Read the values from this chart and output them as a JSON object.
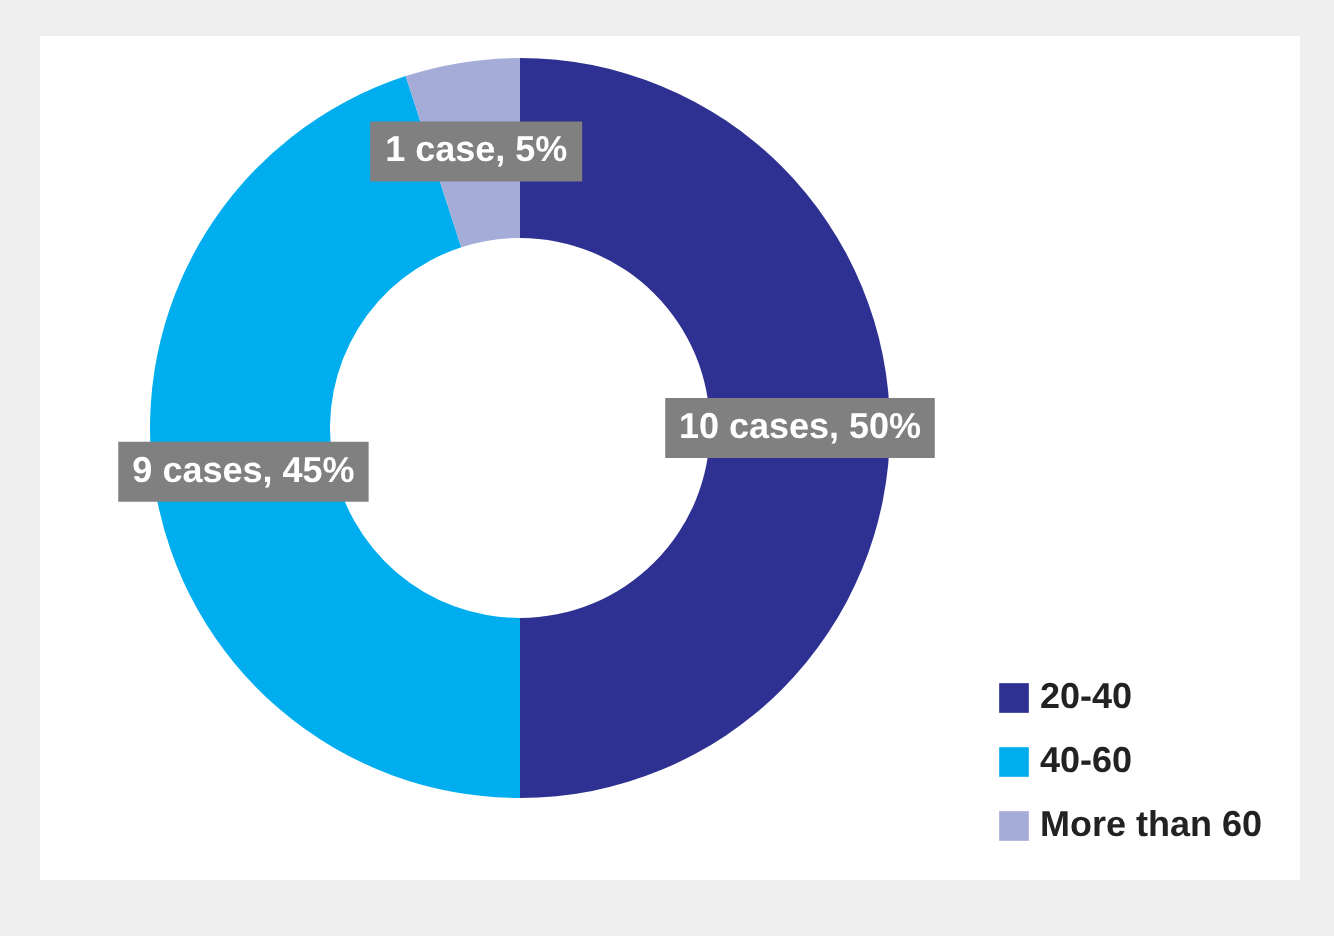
{
  "chart_data": {
    "type": "donut",
    "categories": [
      "20-40",
      "40-60",
      "More than 60"
    ],
    "values": [
      10,
      9,
      1
    ],
    "colors": [
      "#2e3192",
      "#00aeef",
      "#a5acd8"
    ],
    "value_labels": [
      "10 cases, 50%",
      "9 cases, 45%",
      "1 case, 5%"
    ],
    "legend": "bottom right"
  }
}
